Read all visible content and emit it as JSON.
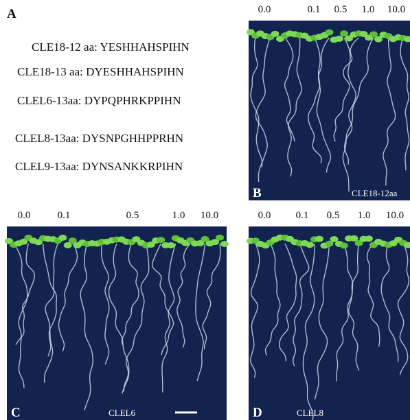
{
  "figure": {
    "panel_a": {
      "label": "A",
      "peptides": [
        "CLE18-12 aa: YESHHAHSPIHN",
        "CLE18-13 aa: DYESHHAHSPIHN",
        "CLEL6-13aa: DYPQPHRKPPIHN",
        "CLEL8-13aa: DYSNPGHHPPRHN",
        "CLEL9-13aa: DYNSANKKRPIHN"
      ]
    },
    "panels": [
      {
        "label": "B",
        "caption": "CLE18-12aa",
        "concentrations": [
          "0.0",
          "0.1",
          "0.5",
          "1.0",
          "10.0"
        ]
      },
      {
        "label": "C",
        "caption": "CLEL6",
        "concentrations": [
          "0.0",
          "0.1",
          "0.5",
          "1.0",
          "10.0"
        ]
      },
      {
        "label": "D",
        "caption": "CLEL8",
        "concentrations": [
          "0.0",
          "0.1",
          "0.5",
          "1.0",
          "10.0"
        ]
      }
    ]
  }
}
